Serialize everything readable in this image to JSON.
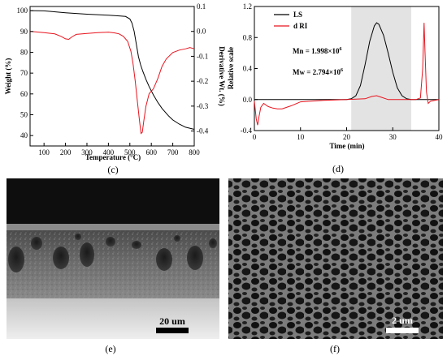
{
  "chart_data": [
    {
      "type": "line",
      "caption": "(c)",
      "xlabel": "Temperature (°C)",
      "ylabel": "Weight (%)",
      "ylabel_right": "Derivative Wt. (%)",
      "xlim": [
        35,
        800
      ],
      "ylim": [
        35,
        102
      ],
      "ylim_right": [
        -0.46,
        0.1
      ],
      "x_ticks": [
        "100",
        "200",
        "300",
        "400",
        "500",
        "600",
        "700",
        "800"
      ],
      "y_ticks": [
        "40",
        "50",
        "60",
        "70",
        "80",
        "90",
        "100"
      ],
      "y_ticks_right": [
        "-0.4",
        "-0.3",
        "-0.2",
        "-0.1",
        "0.0",
        "0.1"
      ],
      "grid": false,
      "series": [
        {
          "name": "",
          "axis": "left",
          "color": "#000000",
          "x": [
            35,
            100,
            200,
            300,
            400,
            450,
            480,
            500,
            510,
            520,
            530,
            540,
            550,
            560,
            575,
            590,
            610,
            630,
            650,
            680,
            700,
            730,
            760,
            800
          ],
          "y": [
            100,
            99.9,
            99,
            98.3,
            97.8,
            97.5,
            97.2,
            96,
            94,
            90,
            84,
            78,
            74,
            71,
            67,
            63.5,
            59.5,
            56,
            53,
            49.5,
            47.5,
            45.5,
            44,
            43
          ]
        },
        {
          "name": "",
          "axis": "right",
          "color": "#e8141e",
          "x": [
            35,
            60,
            100,
            150,
            180,
            200,
            215,
            230,
            250,
            300,
            350,
            400,
            430,
            450,
            470,
            490,
            505,
            515,
            525,
            535,
            545,
            552,
            558,
            565,
            575,
            590,
            610,
            630,
            650,
            670,
            700,
            730,
            760,
            780,
            800
          ],
          "y": [
            0.0,
            -0.002,
            -0.005,
            -0.01,
            -0.02,
            -0.03,
            -0.032,
            -0.022,
            -0.012,
            -0.008,
            -0.005,
            -0.003,
            -0.006,
            -0.01,
            -0.02,
            -0.04,
            -0.08,
            -0.13,
            -0.2,
            -0.28,
            -0.36,
            -0.41,
            -0.405,
            -0.36,
            -0.3,
            -0.25,
            -0.23,
            -0.19,
            -0.14,
            -0.11,
            -0.085,
            -0.075,
            -0.07,
            -0.065,
            -0.07
          ]
        }
      ]
    },
    {
      "type": "line",
      "caption": "(d)",
      "xlabel": "Time (min)",
      "ylabel": "Relative scale",
      "xlim": [
        0,
        40
      ],
      "ylim": [
        -0.4,
        1.2
      ],
      "x_ticks": [
        "0",
        "10",
        "20",
        "30",
        "40"
      ],
      "y_ticks": [
        "-0.4",
        "0.0",
        "0.4",
        "0.8",
        "1.2"
      ],
      "grid": false,
      "legend_position": "top-left",
      "shaded_region": [
        21,
        34
      ],
      "annotations": [
        {
          "label": "Mn = 1.998×10",
          "sup": "6"
        },
        {
          "label": "Mw = 2.794×10",
          "sup": "6"
        }
      ],
      "series": [
        {
          "name": "LS",
          "color": "#000000",
          "x": [
            0,
            20,
            21,
            22,
            23,
            24,
            25,
            26,
            26.5,
            27,
            28,
            29,
            30,
            31,
            32,
            33,
            34,
            36,
            40
          ],
          "y": [
            0.0,
            0.0,
            0.01,
            0.05,
            0.18,
            0.45,
            0.75,
            0.95,
            0.99,
            0.97,
            0.83,
            0.6,
            0.35,
            0.15,
            0.05,
            0.01,
            0.0,
            0.0,
            0.0
          ]
        },
        {
          "name": "d RI",
          "color": "#e8141e",
          "x": [
            0,
            0.4,
            0.7,
            1.0,
            1.4,
            2.0,
            3.0,
            4.0,
            5.0,
            6.0,
            8.0,
            10,
            15,
            20,
            24,
            25.5,
            26.5,
            27.5,
            29,
            32,
            35,
            36,
            36.5,
            36.8,
            37.0,
            37.3,
            37.7,
            38.2,
            40
          ],
          "y": [
            -0.02,
            -0.25,
            -0.33,
            -0.22,
            -0.1,
            -0.05,
            -0.09,
            -0.11,
            -0.12,
            -0.12,
            -0.08,
            -0.03,
            -0.01,
            0.0,
            0.01,
            0.04,
            0.05,
            0.03,
            0.0,
            0.0,
            0.0,
            0.02,
            0.4,
            0.99,
            0.6,
            0.1,
            -0.05,
            -0.02,
            0.0
          ]
        }
      ]
    }
  ],
  "sem_panels": [
    {
      "caption": "(e)",
      "scale_bar_label": "20 um"
    },
    {
      "caption": "(f)",
      "scale_bar_label": "2 um"
    }
  ]
}
